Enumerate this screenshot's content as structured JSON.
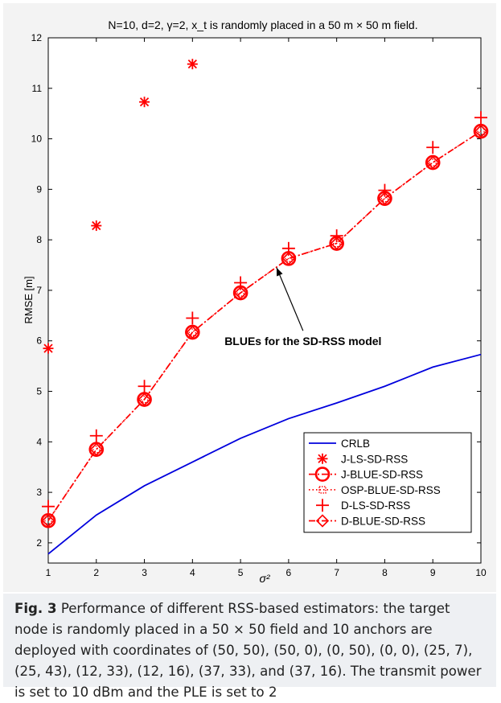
{
  "chart_data": {
    "type": "line",
    "title": "N=10, d=2, γ=2, x_t is randomly placed in a 50 m × 50 m field.",
    "xlabel": "σ²",
    "ylabel": "RMSE [m]",
    "xlim": [
      1,
      10
    ],
    "ylim": [
      1.6,
      12
    ],
    "xticks": [
      "1",
      "2",
      "3",
      "4",
      "5",
      "6",
      "7",
      "8",
      "9",
      "10"
    ],
    "yticks": [
      "2",
      "3",
      "4",
      "5",
      "6",
      "7",
      "8",
      "9",
      "10",
      "11",
      "12"
    ],
    "grid": false,
    "legend_position": "bottom-right",
    "x": [
      1,
      2,
      3,
      4,
      5,
      6,
      7,
      8,
      9,
      10
    ],
    "series": [
      {
        "name": "CRLB",
        "color": "#0000dd",
        "marker": "none",
        "line": "solid",
        "values": [
          1.78,
          2.55,
          3.13,
          3.6,
          4.07,
          4.46,
          4.77,
          5.1,
          5.48,
          5.73
        ]
      },
      {
        "name": "J-LS-SD-RSS",
        "color": "#ff0000",
        "marker": "asterisk",
        "line": "none",
        "values": [
          5.85,
          8.28,
          10.73,
          11.48,
          null,
          null,
          null,
          null,
          null,
          null
        ]
      },
      {
        "name": "J-BLUE-SD-RSS",
        "color": "#ff0000",
        "marker": "circle",
        "line": "dashdot",
        "values": [
          2.44,
          3.85,
          4.84,
          6.17,
          6.95,
          7.63,
          7.93,
          8.82,
          9.53,
          10.15
        ]
      },
      {
        "name": "OSP-BLUE-SD-RSS",
        "color": "#ff0000",
        "marker": "square",
        "line": "dotted",
        "values": [
          2.44,
          3.85,
          4.84,
          6.17,
          6.95,
          7.63,
          7.93,
          8.82,
          9.53,
          10.15
        ]
      },
      {
        "name": "D-LS-SD-RSS",
        "color": "#ff0000",
        "marker": "plus",
        "line": "none",
        "values": [
          2.72,
          4.12,
          5.1,
          6.45,
          7.15,
          7.83,
          8.08,
          8.98,
          9.83,
          10.42
        ]
      },
      {
        "name": "D-BLUE-SD-RSS",
        "color": "#ff0000",
        "marker": "diamond",
        "line": "dashdot",
        "values": [
          2.44,
          3.85,
          4.84,
          6.17,
          6.95,
          7.63,
          7.93,
          8.82,
          9.53,
          10.15
        ]
      }
    ],
    "annotation": {
      "text": "BLUEs for the SD-RSS model",
      "tip": [
        5.75,
        7.45
      ],
      "tail": [
        6.3,
        6.2
      ]
    }
  },
  "caption": {
    "label": "Fig. 3",
    "text": "Performance of different RSS-based estimators: the target node is randomly placed in a 50 × 50 field and 10 anchors are deployed with coordinates of (50, 50), (50, 0), (0, 50), (0, 0), (25, 7), (25, 43), (12, 33), (12, 16), (37, 33), and (37, 16). The transmit power is set to 10 dBm and the PLE is set to 2"
  }
}
